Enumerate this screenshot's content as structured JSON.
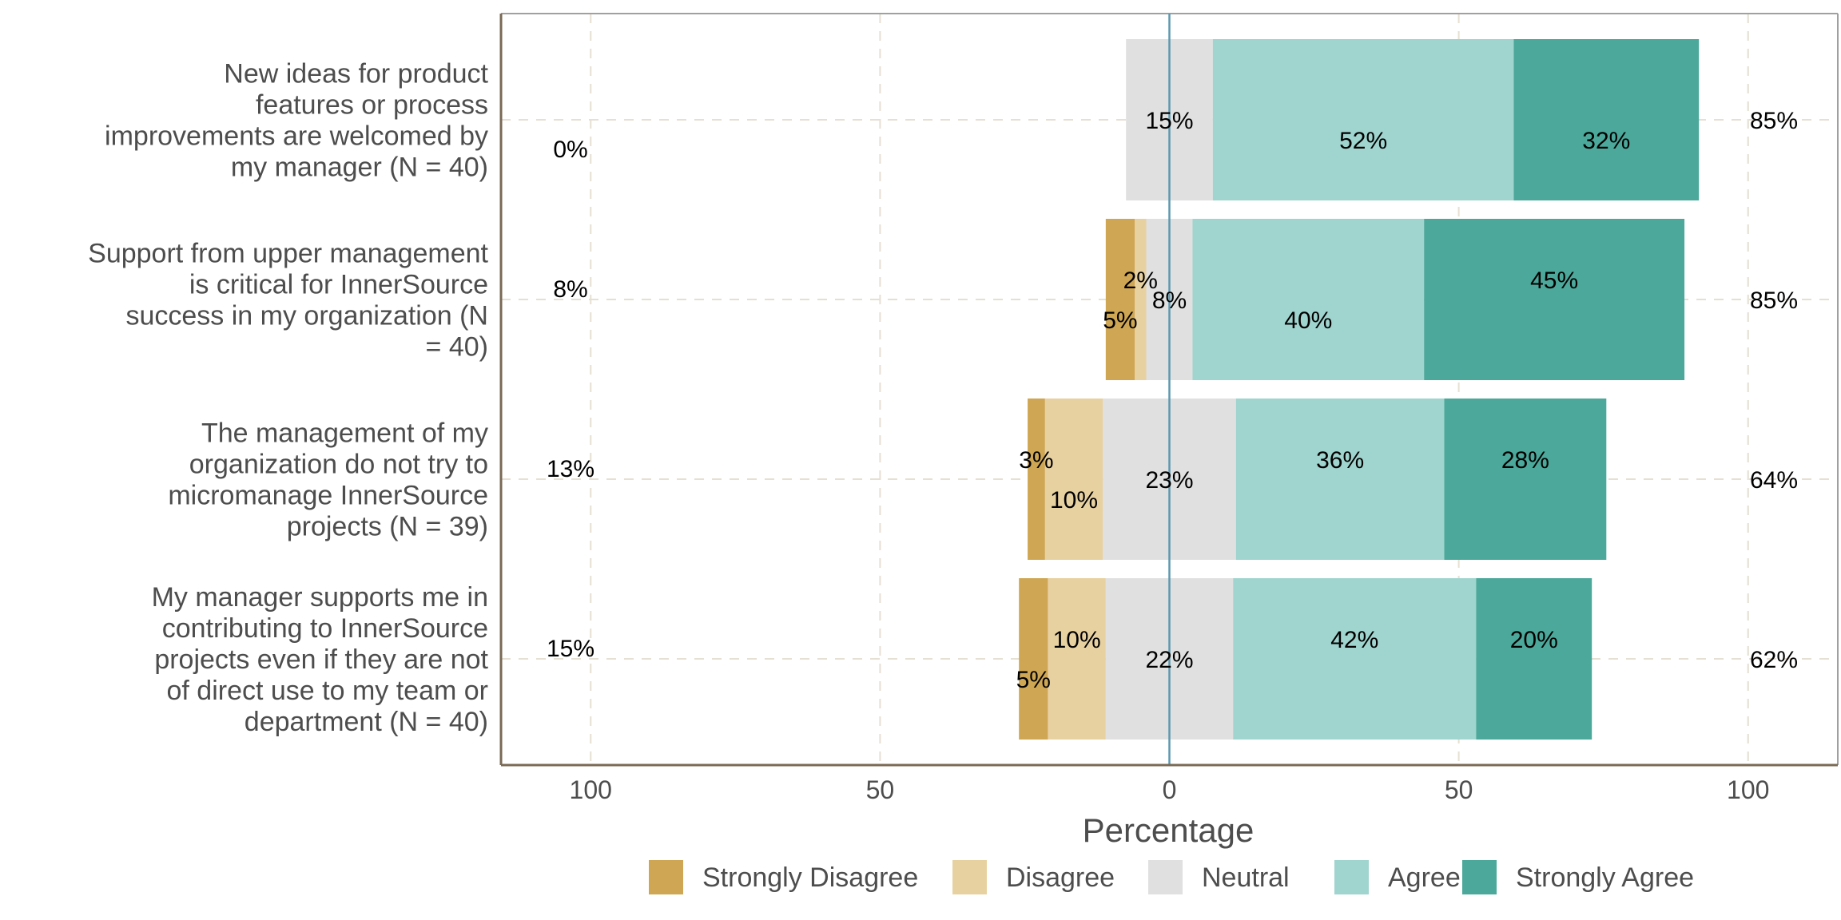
{
  "chart_data": {
    "type": "bar",
    "orientation": "horizontal-diverging",
    "xlabel": "Percentage",
    "xlim": [
      -100,
      100
    ],
    "xticks": [
      -100,
      -50,
      0,
      50,
      100
    ],
    "xtick_labels": [
      "100",
      "50",
      "0",
      "50",
      "100"
    ],
    "grid": true,
    "legend_position": "bottom",
    "levels": [
      "Strongly Disagree",
      "Disagree",
      "Neutral",
      "Agree",
      "Strongly Agree"
    ],
    "colors": {
      "Strongly Disagree": "#CFA653",
      "Disagree": "#E8D1A1",
      "Neutral": "#E0E0E0",
      "Agree": "#A0D4CE",
      "Strongly Agree": "#4BA89A",
      "zero_line": "#5B98B0",
      "grid": "#E6DFD3",
      "axis": "#7A6A55"
    },
    "items": [
      {
        "label_lines": [
          "New ideas for product",
          "features or process",
          "improvements are welcomed by",
          "my manager (N = 40)"
        ],
        "values": [
          0,
          0,
          15,
          52,
          32
        ],
        "value_labels": [
          "",
          "",
          "15%",
          "52%",
          "32%"
        ],
        "low_label": "0%",
        "high_label": "85%"
      },
      {
        "label_lines": [
          "Support from upper management",
          "is critical for InnerSource",
          "success in my organization (N",
          "= 40)"
        ],
        "values": [
          5,
          2,
          8,
          40,
          45
        ],
        "value_labels": [
          "5%",
          "2%",
          "8%",
          "40%",
          "45%"
        ],
        "low_label": "8%",
        "high_label": "85%"
      },
      {
        "label_lines": [
          "The management of my",
          "organization do not try to",
          "micromanage InnerSource",
          "projects (N = 39)"
        ],
        "values": [
          3,
          10,
          23,
          36,
          28
        ],
        "value_labels": [
          "3%",
          "10%",
          "23%",
          "36%",
          "28%"
        ],
        "low_label": "13%",
        "high_label": "64%"
      },
      {
        "label_lines": [
          "My manager supports me in",
          "contributing to InnerSource",
          "projects even if they are not",
          "of direct use to my team or",
          "department (N = 40)"
        ],
        "values": [
          5,
          10,
          22,
          42,
          20
        ],
        "value_labels": [
          "5%",
          "10%",
          "22%",
          "42%",
          "20%"
        ],
        "low_label": "15%",
        "high_label": "62%"
      }
    ]
  }
}
